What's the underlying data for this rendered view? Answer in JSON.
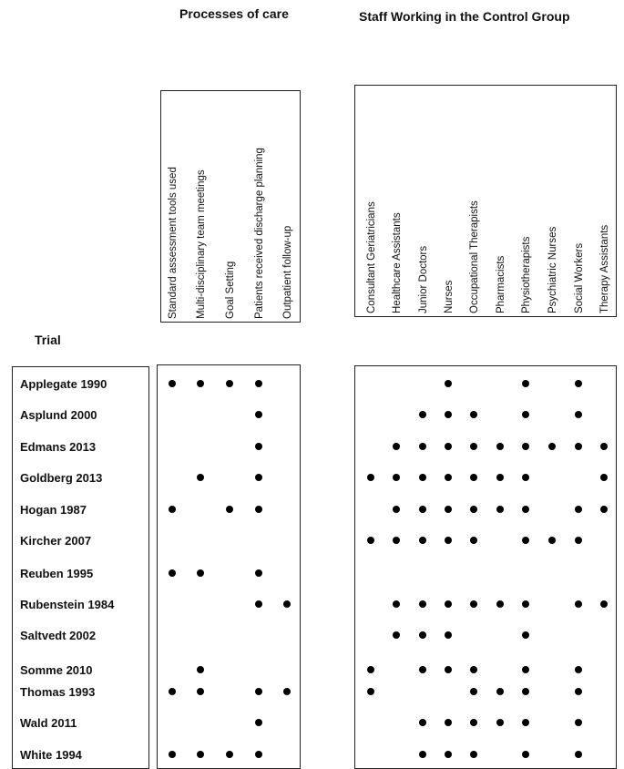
{
  "headers": {
    "processes_title": "Processes of care",
    "staff_title": "Staff Working in the Control Group",
    "trial_label": "Trial"
  },
  "chart_data": {
    "type": "table",
    "trials": [
      "Applegate 1990",
      "Asplund 2000",
      "Edmans 2013",
      "Goldberg 2013",
      "Hogan 1987",
      "Kircher 2007",
      "Reuben 1995",
      "Rubenstein 1984",
      "Saltvedt 2002",
      "Somme 2010",
      "Thomas 1993",
      "Wald 2011",
      "White 1994"
    ],
    "processes_columns": [
      "Standard assessment tools used",
      "Multi-disciplinary team meetings",
      "Goal Setting",
      "Patients received discharge planning",
      "Outpatient follow-up"
    ],
    "staff_columns": [
      "Consultant Geriatricians",
      "Healthcare Assistants",
      "Junior Doctors",
      "Nurses",
      "Occupational Therapists",
      "Pharmacists",
      "Physiotherapists",
      "Psychiatric Nurses",
      "Social Workers",
      "Therapy Assistants"
    ],
    "processes_matrix": [
      [
        1,
        1,
        1,
        1,
        0
      ],
      [
        0,
        0,
        0,
        1,
        0
      ],
      [
        0,
        0,
        0,
        1,
        0
      ],
      [
        0,
        1,
        0,
        1,
        0
      ],
      [
        1,
        0,
        1,
        1,
        0
      ],
      [
        0,
        0,
        0,
        0,
        0
      ],
      [
        1,
        1,
        0,
        1,
        0
      ],
      [
        0,
        0,
        0,
        1,
        1
      ],
      [
        0,
        0,
        0,
        0,
        0
      ],
      [
        0,
        1,
        0,
        0,
        0
      ],
      [
        1,
        1,
        0,
        1,
        1
      ],
      [
        0,
        0,
        0,
        1,
        0
      ],
      [
        1,
        1,
        1,
        1,
        0
      ]
    ],
    "staff_matrix": [
      [
        0,
        0,
        0,
        1,
        0,
        0,
        1,
        0,
        1,
        0
      ],
      [
        0,
        0,
        1,
        1,
        1,
        0,
        1,
        0,
        1,
        0
      ],
      [
        0,
        1,
        1,
        1,
        1,
        1,
        1,
        1,
        1,
        1
      ],
      [
        1,
        1,
        1,
        1,
        1,
        1,
        1,
        0,
        0,
        1
      ],
      [
        0,
        1,
        1,
        1,
        1,
        1,
        1,
        0,
        1,
        1
      ],
      [
        1,
        1,
        1,
        1,
        1,
        0,
        1,
        1,
        1,
        0
      ],
      [
        0,
        0,
        0,
        0,
        0,
        0,
        0,
        0,
        0,
        0
      ],
      [
        0,
        1,
        1,
        1,
        1,
        1,
        1,
        0,
        1,
        1
      ],
      [
        0,
        1,
        1,
        1,
        0,
        0,
        1,
        0,
        0,
        0
      ],
      [
        1,
        0,
        1,
        1,
        1,
        0,
        1,
        0,
        1,
        0
      ],
      [
        1,
        0,
        0,
        0,
        1,
        1,
        1,
        0,
        1,
        0
      ],
      [
        0,
        0,
        1,
        1,
        1,
        1,
        1,
        0,
        1,
        0
      ],
      [
        0,
        0,
        1,
        1,
        1,
        0,
        1,
        0,
        1,
        0
      ]
    ]
  }
}
